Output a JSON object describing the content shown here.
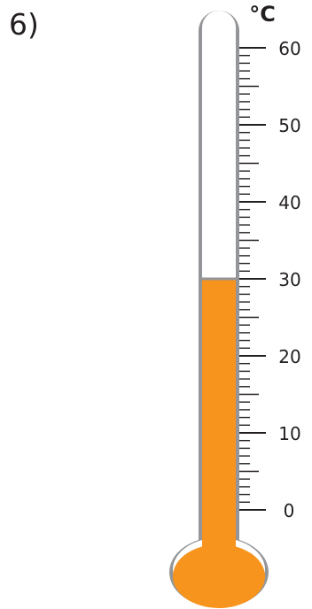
{
  "question": {
    "number": "6)"
  },
  "thermometer": {
    "unit_label": "°C",
    "scale_min": 0,
    "scale_max": 60,
    "major_step": 10,
    "minor_step": 1,
    "tick_labels": [
      "0",
      "10",
      "20",
      "30",
      "40",
      "50",
      "60"
    ],
    "reading": 30,
    "liquid_color": "#f7941d",
    "tube_outline_color": "#939598",
    "tick_color": "#231f20"
  }
}
